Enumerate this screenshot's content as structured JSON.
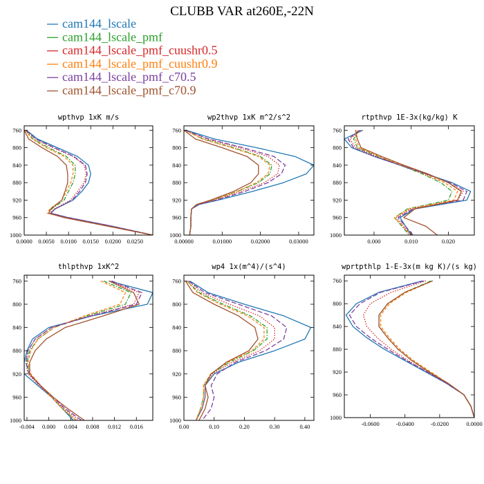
{
  "title": "CLUBB VAR at260E,-22N",
  "legend": [
    {
      "label": "cam144_lscale",
      "color": "#1f77b4",
      "dash": "solid"
    },
    {
      "label": "cam144_lscale_pmf",
      "color": "#2ca02c",
      "dash": "dashdot"
    },
    {
      "label": "cam144_lscale_pmf_cuushr0.5",
      "color": "#d62728",
      "dash": "dotted"
    },
    {
      "label": "cam144_lscale_pmf_cuushr0.9",
      "color": "#ff7f0e",
      "dash": "dashed"
    },
    {
      "label": "cam144_lscale_pmf_c70.5",
      "color": "#7b3fa0",
      "dash": "longdash"
    },
    {
      "label": "cam144_lscale_pmf_c70.9",
      "color": "#a0522d",
      "dash": "solid"
    }
  ],
  "chart_data": [
    {
      "type": "line",
      "title": "wpthvp  1xK m/s",
      "xlim": [
        0,
        0.029
      ],
      "ylim": [
        1000,
        750
      ],
      "xticks": [
        0,
        0.005,
        0.01,
        0.015,
        0.02,
        0.025
      ],
      "xtick_labels": [
        "0.0000",
        "0.0050",
        "0.0100",
        "0.0150",
        "0.0200",
        "0.0250"
      ],
      "yticks": [
        760,
        800,
        840,
        880,
        920,
        960,
        1000
      ],
      "ytick_labels": [
        "760",
        "800",
        "840",
        "880",
        "920",
        "960",
        "1000"
      ],
      "y": [
        760,
        780,
        800,
        820,
        840,
        860,
        880,
        900,
        920,
        940,
        950,
        960,
        980,
        1000
      ],
      "series": [
        {
          "name": "cam144_lscale",
          "values": [
            0.0005,
            0.003,
            0.0075,
            0.012,
            0.0145,
            0.015,
            0.0145,
            0.013,
            0.011,
            0.007,
            0.006,
            0.01,
            0.02,
            0.029
          ]
        },
        {
          "name": "cam144_lscale_pmf",
          "values": [
            0.0003,
            0.002,
            0.0055,
            0.0095,
            0.0115,
            0.0115,
            0.011,
            0.01,
            0.009,
            0.0062,
            0.0055,
            0.0095,
            0.0195,
            0.029
          ]
        },
        {
          "name": "cam144_lscale_pmf_cuushr0.5",
          "values": [
            0.0004,
            0.0025,
            0.0065,
            0.011,
            0.0135,
            0.014,
            0.0135,
            0.012,
            0.0105,
            0.0068,
            0.0058,
            0.0098,
            0.0198,
            0.029
          ]
        },
        {
          "name": "cam144_lscale_pmf_cuushr0.9",
          "values": [
            0.0002,
            0.0018,
            0.005,
            0.009,
            0.011,
            0.011,
            0.0105,
            0.0095,
            0.0085,
            0.0058,
            0.0052,
            0.0092,
            0.0192,
            0.029
          ]
        },
        {
          "name": "cam144_lscale_pmf_c70.5",
          "values": [
            0.0004,
            0.0026,
            0.0068,
            0.0112,
            0.0138,
            0.0142,
            0.0138,
            0.0125,
            0.0108,
            0.007,
            0.006,
            0.01,
            0.02,
            0.029
          ]
        },
        {
          "name": "cam144_lscale_pmf_c70.9",
          "values": [
            0.0,
            0.001,
            0.004,
            0.0075,
            0.0095,
            0.0098,
            0.0098,
            0.0092,
            0.0085,
            0.006,
            0.0055,
            0.009,
            0.019,
            0.029
          ]
        }
      ]
    },
    {
      "type": "line",
      "title": "wp2thvp  1xK m^2/s^2",
      "xlim": [
        0,
        0.034
      ],
      "ylim": [
        1000,
        750
      ],
      "xticks": [
        0,
        0.01,
        0.02,
        0.03
      ],
      "xtick_labels": [
        "0.00000",
        "0.01000",
        "0.02000",
        "0.03000"
      ],
      "yticks": [
        760,
        800,
        840,
        880,
        920,
        960,
        1000
      ],
      "ytick_labels": [
        "760",
        "800",
        "840",
        "880",
        "920",
        "960",
        "1000"
      ],
      "y": [
        760,
        780,
        800,
        820,
        840,
        860,
        880,
        900,
        920,
        930,
        940,
        960,
        980,
        1000
      ],
      "series": [
        {
          "name": "cam144_lscale",
          "values": [
            0.0005,
            0.008,
            0.019,
            0.029,
            0.034,
            0.032,
            0.026,
            0.018,
            0.009,
            0.004,
            0.002,
            0.0018,
            0.0018,
            0.0015
          ]
        },
        {
          "name": "cam144_lscale_pmf",
          "values": [
            0.0003,
            0.005,
            0.013,
            0.02,
            0.023,
            0.0225,
            0.0195,
            0.014,
            0.0075,
            0.0035,
            0.002,
            0.0018,
            0.0018,
            0.0015
          ]
        },
        {
          "name": "cam144_lscale_pmf_cuushr0.5",
          "values": [
            0.0004,
            0.006,
            0.0145,
            0.022,
            0.025,
            0.0245,
            0.021,
            0.015,
            0.008,
            0.0036,
            0.002,
            0.0018,
            0.0018,
            0.0015
          ]
        },
        {
          "name": "cam144_lscale_pmf_cuushr0.9",
          "values": [
            0.0003,
            0.0048,
            0.0125,
            0.0195,
            0.0225,
            0.022,
            0.019,
            0.0138,
            0.0074,
            0.0034,
            0.002,
            0.0018,
            0.0018,
            0.0015
          ]
        },
        {
          "name": "cam144_lscale_pmf_c70.5",
          "values": [
            0.0004,
            0.0065,
            0.0155,
            0.0235,
            0.0265,
            0.0255,
            0.022,
            0.016,
            0.0085,
            0.0037,
            0.002,
            0.0018,
            0.0018,
            0.0015
          ]
        },
        {
          "name": "cam144_lscale_pmf_c70.9",
          "values": [
            0.0,
            0.003,
            0.01,
            0.0165,
            0.0195,
            0.0195,
            0.0175,
            0.013,
            0.007,
            0.0033,
            0.002,
            0.0018,
            0.0018,
            0.0015
          ]
        }
      ]
    },
    {
      "type": "line",
      "title": "rtpthvp  1E-3x(kg/kg) K",
      "xlim": [
        -0.008,
        0.027
      ],
      "ylim": [
        1000,
        750
      ],
      "xticks": [
        0,
        0.01,
        0.02
      ],
      "xtick_labels": [
        "0.000",
        "0.010",
        "0.020"
      ],
      "yticks": [
        760,
        800,
        840,
        880,
        920,
        960,
        1000
      ],
      "ytick_labels": [
        "760",
        "800",
        "840",
        "880",
        "920",
        "960",
        "1000"
      ],
      "y": [
        760,
        780,
        800,
        820,
        840,
        860,
        880,
        900,
        920,
        940,
        960,
        980,
        1000
      ],
      "series": [
        {
          "name": "cam144_lscale",
          "values": [
            -0.003,
            -0.008,
            -0.006,
            0.0,
            0.007,
            0.014,
            0.021,
            0.026,
            0.025,
            0.011,
            0.007,
            0.0085,
            0.01
          ]
        },
        {
          "name": "cam144_lscale_pmf",
          "values": [
            -0.004,
            -0.0055,
            -0.0045,
            0.001,
            0.007,
            0.013,
            0.018,
            0.021,
            0.02,
            0.009,
            0.0055,
            0.0075,
            0.0095
          ]
        },
        {
          "name": "cam144_lscale_pmf_cuushr0.5",
          "values": [
            -0.0035,
            -0.0065,
            -0.005,
            0.0005,
            0.0075,
            0.014,
            0.02,
            0.024,
            0.0225,
            0.01,
            0.006,
            0.008,
            0.01
          ]
        },
        {
          "name": "cam144_lscale_pmf_cuushr0.9",
          "values": [
            -0.0045,
            -0.005,
            -0.004,
            0.0015,
            0.0075,
            0.0135,
            0.019,
            0.0225,
            0.0215,
            0.0095,
            0.0055,
            0.0078,
            0.0098
          ]
        },
        {
          "name": "cam144_lscale_pmf_c70.5",
          "values": [
            -0.0038,
            -0.007,
            -0.0055,
            0.0,
            0.007,
            0.014,
            0.0205,
            0.025,
            0.024,
            0.0105,
            0.0065,
            0.0085,
            0.0105
          ]
        },
        {
          "name": "cam144_lscale_pmf_c70.9",
          "values": [
            -0.005,
            -0.0045,
            -0.0035,
            0.002,
            0.008,
            0.0145,
            0.02,
            0.0235,
            0.0225,
            0.011,
            0.008,
            0.014,
            0.017
          ]
        }
      ]
    },
    {
      "type": "line",
      "title": "thlpthvp  1xK^2",
      "xlim": [
        -0.0045,
        0.019
      ],
      "ylim": [
        1000,
        750
      ],
      "xticks": [
        -0.004,
        0,
        0.004,
        0.008,
        0.012,
        0.016
      ],
      "xtick_labels": [
        "-0.004",
        "0.000",
        "0.004",
        "0.008",
        "0.012",
        "0.016"
      ],
      "yticks": [
        760,
        800,
        840,
        880,
        920,
        960,
        1000
      ],
      "ytick_labels": [
        "760",
        "800",
        "840",
        "880",
        "920",
        "960",
        "1000"
      ],
      "y": [
        760,
        780,
        800,
        820,
        840,
        860,
        880,
        900,
        920,
        940,
        960,
        980,
        1000
      ],
      "series": [
        {
          "name": "cam144_lscale",
          "values": [
            0.011,
            0.019,
            0.018,
            0.008,
            0.0,
            -0.003,
            -0.004,
            -0.0045,
            -0.0045,
            -0.002,
            0.0005,
            0.0025,
            0.0045
          ]
        },
        {
          "name": "cam144_lscale_pmf",
          "values": [
            0.01,
            0.015,
            0.014,
            0.007,
            0.001,
            -0.002,
            -0.0035,
            -0.004,
            -0.0035,
            -0.0015,
            0.0005,
            0.0025,
            0.005
          ]
        },
        {
          "name": "cam144_lscale_pmf_cuushr0.5",
          "values": [
            0.011,
            0.0165,
            0.0155,
            0.0075,
            0.0005,
            -0.0025,
            -0.0038,
            -0.0042,
            -0.0038,
            -0.0018,
            0.0005,
            0.0028,
            0.0055
          ]
        },
        {
          "name": "cam144_lscale_pmf_cuushr0.9",
          "values": [
            0.0095,
            0.014,
            0.013,
            0.0065,
            0.001,
            -0.002,
            -0.0033,
            -0.0038,
            -0.0033,
            -0.0015,
            0.0005,
            0.0025,
            0.005
          ]
        },
        {
          "name": "cam144_lscale_pmf_c70.5",
          "values": [
            0.0115,
            0.017,
            0.016,
            0.0078,
            0.0005,
            -0.0025,
            -0.0038,
            -0.0042,
            -0.0036,
            -0.0016,
            0.0008,
            0.003,
            0.006
          ]
        },
        {
          "name": "cam144_lscale_pmf_c70.9",
          "values": [
            0.011,
            0.0155,
            0.0165,
            0.01,
            0.003,
            -0.0005,
            -0.0025,
            -0.0035,
            -0.0035,
            -0.0015,
            0.0008,
            0.0035,
            0.0065
          ]
        }
      ]
    },
    {
      "type": "line",
      "title": "wp4  1x(m^4)/(s^4)",
      "xlim": [
        0,
        0.43
      ],
      "ylim": [
        1000,
        750
      ],
      "xticks": [
        0,
        0.1,
        0.2,
        0.3,
        0.4
      ],
      "xtick_labels": [
        "0.00",
        "0.10",
        "0.20",
        "0.30",
        "0.40"
      ],
      "yticks": [
        760,
        800,
        840,
        880,
        920,
        960,
        1000
      ],
      "ytick_labels": [
        "760",
        "800",
        "840",
        "880",
        "920",
        "960",
        "1000"
      ],
      "y": [
        760,
        780,
        800,
        820,
        840,
        860,
        880,
        900,
        920,
        940,
        960,
        980,
        1000
      ],
      "series": [
        {
          "name": "cam144_lscale",
          "values": [
            0.02,
            0.08,
            0.2,
            0.33,
            0.42,
            0.4,
            0.3,
            0.18,
            0.1,
            0.07,
            0.07,
            0.06,
            0.04
          ]
        },
        {
          "name": "cam144_lscale_pmf",
          "values": [
            0.01,
            0.05,
            0.13,
            0.22,
            0.275,
            0.275,
            0.23,
            0.15,
            0.09,
            0.065,
            0.065,
            0.055,
            0.04
          ]
        },
        {
          "name": "cam144_lscale_pmf_cuushr0.5",
          "values": [
            0.015,
            0.06,
            0.15,
            0.25,
            0.3,
            0.3,
            0.25,
            0.16,
            0.095,
            0.07,
            0.07,
            0.06,
            0.04
          ]
        },
        {
          "name": "cam144_lscale_pmf_cuushr0.9",
          "values": [
            0.01,
            0.045,
            0.12,
            0.21,
            0.265,
            0.265,
            0.225,
            0.145,
            0.088,
            0.065,
            0.065,
            0.055,
            0.04
          ]
        },
        {
          "name": "cam144_lscale_pmf_c70.5",
          "values": [
            0.015,
            0.07,
            0.18,
            0.29,
            0.34,
            0.33,
            0.27,
            0.17,
            0.11,
            0.09,
            0.1,
            0.09,
            0.06
          ]
        },
        {
          "name": "cam144_lscale_pmf_c70.9",
          "values": [
            0.005,
            0.03,
            0.1,
            0.18,
            0.235,
            0.245,
            0.215,
            0.14,
            0.09,
            0.07,
            0.08,
            0.07,
            0.05
          ]
        }
      ]
    },
    {
      "type": "line",
      "title": "wprtpthlp  1-E-3x(m kg K)/(s kg)",
      "xlim": [
        -0.075,
        0
      ],
      "ylim": [
        1000,
        750
      ],
      "xticks": [
        -0.06,
        -0.04,
        -0.02,
        0
      ],
      "xtick_labels": [
        "-0.0600",
        "-0.0400",
        "-0.0200",
        "0.0000"
      ],
      "yticks": [
        760,
        800,
        840,
        880,
        920,
        960,
        1000
      ],
      "ytick_labels": [
        "760",
        "800",
        "840",
        "880",
        "920",
        "960",
        "1000"
      ],
      "y": [
        760,
        780,
        800,
        820,
        840,
        860,
        880,
        900,
        920,
        940,
        960,
        980,
        1000
      ],
      "series": [
        {
          "name": "cam144_lscale",
          "values": [
            -0.03,
            -0.055,
            -0.068,
            -0.074,
            -0.07,
            -0.062,
            -0.052,
            -0.04,
            -0.028,
            -0.016,
            -0.006,
            -0.002,
            0.0
          ]
        },
        {
          "name": "cam144_lscale_pmf",
          "values": [
            -0.025,
            -0.04,
            -0.05,
            -0.055,
            -0.055,
            -0.05,
            -0.044,
            -0.036,
            -0.026,
            -0.015,
            -0.006,
            -0.002,
            0.0
          ]
        },
        {
          "name": "cam144_lscale_pmf_cuushr0.5",
          "values": [
            -0.028,
            -0.048,
            -0.06,
            -0.064,
            -0.062,
            -0.056,
            -0.048,
            -0.038,
            -0.027,
            -0.015,
            -0.006,
            -0.002,
            0.0
          ]
        },
        {
          "name": "cam144_lscale_pmf_cuushr0.9",
          "values": [
            -0.024,
            -0.039,
            -0.049,
            -0.054,
            -0.054,
            -0.049,
            -0.043,
            -0.035,
            -0.025,
            -0.015,
            -0.006,
            -0.002,
            0.0
          ]
        },
        {
          "name": "cam144_lscale_pmf_c70.5",
          "values": [
            -0.029,
            -0.054,
            -0.066,
            -0.072,
            -0.068,
            -0.06,
            -0.05,
            -0.039,
            -0.027,
            -0.016,
            -0.006,
            -0.002,
            0.0
          ]
        },
        {
          "name": "cam144_lscale_pmf_c70.9",
          "values": [
            -0.024,
            -0.04,
            -0.05,
            -0.055,
            -0.055,
            -0.05,
            -0.044,
            -0.036,
            -0.026,
            -0.015,
            -0.006,
            -0.002,
            0.0
          ]
        }
      ]
    }
  ]
}
